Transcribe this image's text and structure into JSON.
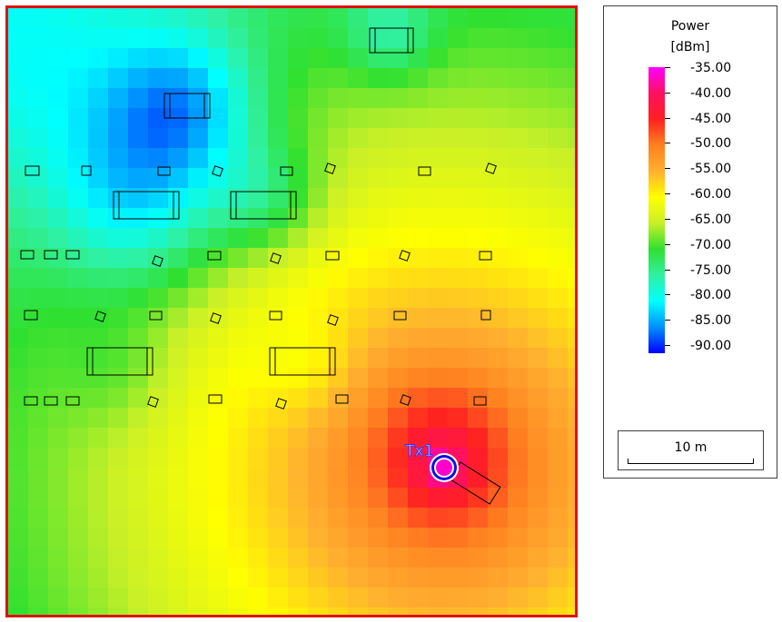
{
  "legend": {
    "title": "Power",
    "unit": "[dBm]",
    "ticks": [
      "-35.00",
      "-40.00",
      "-45.00",
      "-50.00",
      "-55.00",
      "-60.00",
      "-65.00",
      "-70.00",
      "-75.00",
      "-80.00",
      "-85.00",
      "-90.00"
    ],
    "colors": [
      "#ff00ff",
      "#ff1060",
      "#ff2020",
      "#ff8020",
      "#ffb030",
      "#ffff00",
      "#c8f028",
      "#30e030",
      "#30f0a0",
      "#00ffff",
      "#0090ff",
      "#0000ff"
    ]
  },
  "scale": {
    "label": "10 m"
  },
  "transmitter": {
    "label": "Tx1"
  },
  "colors": {
    "frame": "#e01010",
    "label": "#3030ff"
  }
}
